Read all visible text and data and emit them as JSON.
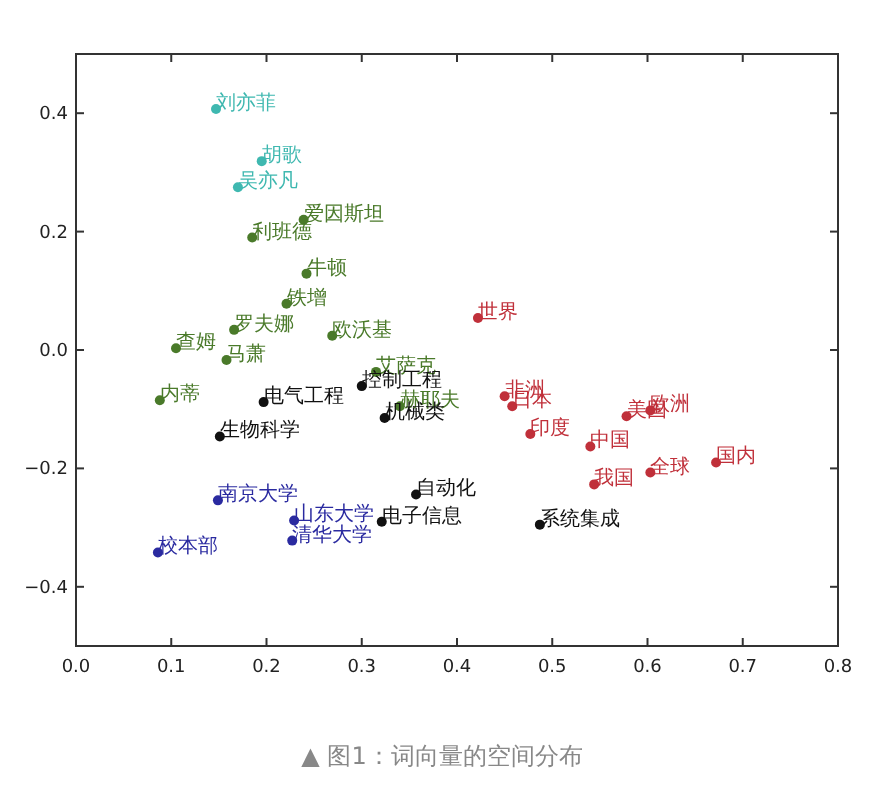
{
  "chart_data": {
    "type": "scatter",
    "marker": "circle",
    "xlim": [
      0,
      0.8
    ],
    "ylim": [
      -0.5,
      0.5
    ],
    "xticks": [
      {
        "value": 0,
        "label": "0.0"
      },
      {
        "value": 0.1,
        "label": "0.1"
      },
      {
        "value": 0.2,
        "label": "0.2"
      },
      {
        "value": 0.3,
        "label": "0.3"
      },
      {
        "value": 0.4,
        "label": "0.4"
      },
      {
        "value": 0.5,
        "label": "0.5"
      },
      {
        "value": 0.6,
        "label": "0.6"
      },
      {
        "value": 0.7,
        "label": "0.7"
      },
      {
        "value": 0.8,
        "label": "0.8"
      }
    ],
    "yticks": [
      {
        "value": -0.4,
        "label": "−0.4"
      },
      {
        "value": -0.2,
        "label": "−0.2"
      },
      {
        "value": 0,
        "label": "0.0"
      },
      {
        "value": 0.2,
        "label": "0.2"
      },
      {
        "value": 0.4,
        "label": "0.4"
      }
    ],
    "grid": false,
    "series": [
      {
        "color": "#3fb8b0",
        "x": [
          0.147,
          0.195,
          0.17
        ],
        "values": [
          0.407,
          0.319,
          0.275
        ],
        "value_labels": [
          "刘亦菲",
          "胡歌",
          "吴亦凡"
        ]
      },
      {
        "color": "#4a7a2a",
        "x": [
          0.239,
          0.185,
          0.242,
          0.221,
          0.166,
          0.269,
          0.105,
          0.158,
          0.315,
          0.088,
          0.34
        ],
        "values": [
          0.22,
          0.19,
          0.129,
          0.078,
          0.034,
          0.024,
          0.003,
          -0.017,
          -0.037,
          -0.085,
          -0.095
        ],
        "value_labels": [
          "爱因斯坦",
          "利班德",
          "牛顿",
          "铁增",
          "罗夫娜",
          "欧沃基",
          "查姆",
          "马萧",
          "艾萨克",
          "内蒂",
          "赫耶夫"
        ]
      },
      {
        "color": "#111111",
        "x": [
          0.3,
          0.197,
          0.324,
          0.151,
          0.357,
          0.321,
          0.487
        ],
        "values": [
          -0.061,
          -0.088,
          -0.115,
          -0.146,
          -0.244,
          -0.29,
          -0.295
        ],
        "value_labels": [
          "控制工程",
          "电气工程",
          "机械类",
          "生物科学",
          "自动化",
          "电子信息",
          "系统集成"
        ]
      },
      {
        "color": "#2a2aa0",
        "x": [
          0.149,
          0.229,
          0.227,
          0.086
        ],
        "values": [
          -0.254,
          -0.288,
          -0.322,
          -0.342
        ],
        "value_labels": [
          "南京大学",
          "山东大学",
          "清华大学",
          "校本部"
        ]
      },
      {
        "color": "#c0303a",
        "x": [
          0.422,
          0.45,
          0.458,
          0.477,
          0.54,
          0.578,
          0.603,
          0.603,
          0.544,
          0.672
        ],
        "values": [
          0.054,
          -0.078,
          -0.095,
          -0.142,
          -0.163,
          -0.112,
          -0.102,
          -0.207,
          -0.227,
          -0.19
        ],
        "value_labels": [
          "世界",
          "非洲",
          "日本",
          "印度",
          "中国",
          "美国",
          "欧洲",
          "全球",
          "我国",
          "国内"
        ]
      }
    ],
    "annotations": [
      "▲ 图1：词向量的空间分布"
    ]
  }
}
